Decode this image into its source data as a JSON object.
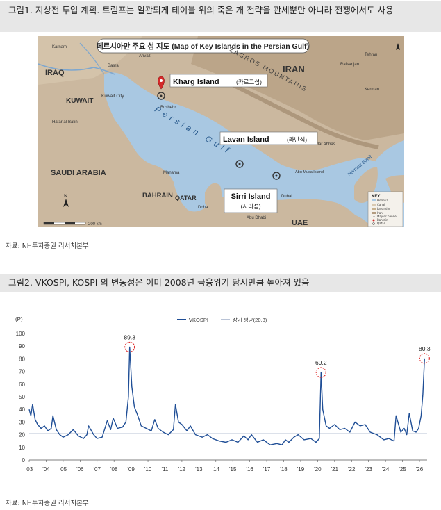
{
  "figure1": {
    "header": "그림1. 지상전 투입 계획. 트럼프는 일관되게 테이블 위의 죽은 개 전략을 관세뿐만 아니라 전쟁에서도 사용",
    "map_title": "페르시아만 주요 섬 지도 (Map of Key Islands in the Persian Gulf)",
    "countries": [
      "IRAQ",
      "IRAN",
      "KUWAIT",
      "SAUDI ARABIA",
      "BAHRAIN",
      "QATAR",
      "UAE"
    ],
    "mountains": "ZAGROS MOUNTAINS",
    "sea": "Persian Gulf",
    "strait": "Hormuz Strait",
    "cities": [
      "Karnam",
      "Basra",
      "Kuwait City",
      "Bushehr",
      "Ahvaz",
      "Rafsanjan",
      "Kerman",
      "Bandar Abbas",
      "Manama",
      "Doha",
      "Abu Musa Island",
      "Dubai",
      "Abu Dhabi",
      "Tehran",
      "Hafar al-Batin"
    ],
    "islands": [
      {
        "name": "Kharg Island",
        "korean": "(카르그섬)"
      },
      {
        "name": "Lavan Island",
        "korean": "(라반섬)"
      },
      {
        "name": "Sirri Island",
        "korean": "(시리섬)"
      }
    ],
    "key": {
      "title": "KEY",
      "items": [
        "Hormuz",
        "Canal",
        "Lavandin",
        "Iran",
        "Major Channel",
        "Bahrain",
        "Qatar"
      ]
    },
    "scale": "200 km",
    "source": "자료: NH투자증권 리서치본부"
  },
  "figure2": {
    "header": "그림2. VKOSPI, KOSPI 의 변동성은 이미 2008년 금융위기 당시만큼 높아져 있음",
    "source": "자료: NH투자증권 리서치본부"
  },
  "chart_data": {
    "type": "line",
    "unit_label": "(P)",
    "series": [
      {
        "name": "VKOSPI",
        "color": "#1f4e96"
      },
      {
        "name": "장기 평균(20.8)",
        "color": "#b9c3d6",
        "value": 20.8
      }
    ],
    "ylim": [
      0,
      100
    ],
    "yticks": [
      0,
      10,
      20,
      30,
      40,
      50,
      60,
      70,
      80,
      90,
      100
    ],
    "xlim": [
      2003,
      2026.45
    ],
    "xticks": [
      "'03",
      "'04",
      "'05",
      "'06",
      "'07",
      "'08",
      "'09",
      "'10",
      "'11",
      "'12",
      "'13",
      "'14",
      "'15",
      "'16",
      "'17",
      "'18",
      "'19",
      "'20",
      "'21",
      "'22",
      "'23",
      "'24",
      "'25",
      "'26"
    ],
    "x": [
      2003.0,
      2003.1,
      2003.2,
      2003.35,
      2003.5,
      2003.7,
      2003.9,
      2004.1,
      2004.3,
      2004.4,
      2004.6,
      2004.8,
      2005.0,
      2005.3,
      2005.6,
      2005.9,
      2006.2,
      2006.4,
      2006.5,
      2006.8,
      2007.0,
      2007.3,
      2007.6,
      2007.8,
      2007.95,
      2008.2,
      2008.5,
      2008.7,
      2008.85,
      2008.92,
      2009.05,
      2009.2,
      2009.4,
      2009.6,
      2009.9,
      2010.2,
      2010.4,
      2010.6,
      2010.9,
      2011.2,
      2011.5,
      2011.62,
      2011.8,
      2012.0,
      2012.3,
      2012.5,
      2012.8,
      2013.2,
      2013.5,
      2013.8,
      2014.2,
      2014.6,
      2014.95,
      2015.3,
      2015.65,
      2015.9,
      2016.1,
      2016.45,
      2016.8,
      2017.2,
      2017.6,
      2017.9,
      2018.1,
      2018.3,
      2018.6,
      2018.85,
      2019.2,
      2019.6,
      2019.9,
      2020.1,
      2020.2,
      2020.3,
      2020.5,
      2020.7,
      2021.0,
      2021.3,
      2021.6,
      2021.9,
      2022.2,
      2022.5,
      2022.8,
      2023.1,
      2023.5,
      2023.9,
      2024.2,
      2024.5,
      2024.62,
      2024.9,
      2025.1,
      2025.25,
      2025.4,
      2025.6,
      2025.8,
      2025.95,
      2026.1,
      2026.2,
      2026.3
    ],
    "values": [
      40,
      35,
      44,
      32,
      28,
      25,
      27,
      23,
      25,
      35,
      24,
      20,
      18,
      20,
      24,
      19,
      17,
      20,
      27,
      20,
      17,
      18,
      31,
      24,
      33,
      25,
      26,
      30,
      50,
      89.3,
      58,
      42,
      35,
      27,
      25,
      23,
      32,
      25,
      22,
      20,
      24,
      44,
      30,
      28,
      23,
      27,
      20,
      18,
      20,
      17,
      15,
      14,
      16,
      14,
      19,
      16,
      20,
      14,
      16,
      12,
      13,
      12,
      16,
      14,
      18,
      20,
      16,
      17,
      14,
      17,
      69.2,
      40,
      27,
      25,
      28,
      24,
      25,
      22,
      30,
      27,
      28,
      22,
      20,
      16,
      17,
      15,
      35,
      22,
      25,
      20,
      37,
      23,
      22,
      25,
      35,
      52,
      80.3
    ],
    "annotations": [
      {
        "label": "89.3",
        "x": 2008.92,
        "y": 89.3
      },
      {
        "label": "69.2",
        "x": 2020.2,
        "y": 69.2
      },
      {
        "label": "80.3",
        "x": 2026.3,
        "y": 80.3
      }
    ],
    "grid": false,
    "legend": "top-center"
  }
}
